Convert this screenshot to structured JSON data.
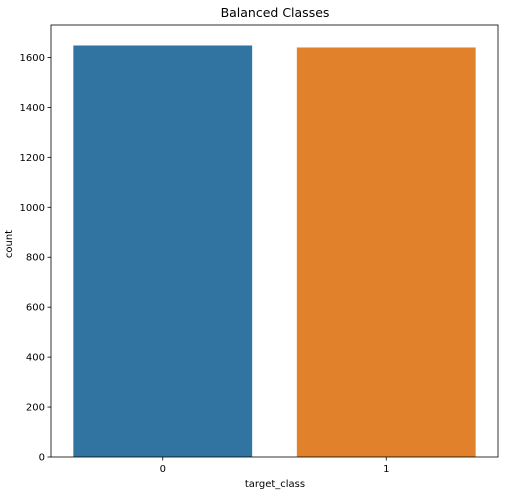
{
  "chart_data": {
    "type": "bar",
    "title": "Balanced Classes",
    "xlabel": "target_class",
    "ylabel": "count",
    "categories": [
      "0",
      "1"
    ],
    "values": [
      1648,
      1640
    ],
    "colors": [
      "#3274a1",
      "#e1812c"
    ],
    "ylim": [
      0,
      1730
    ],
    "yticks": [
      0,
      200,
      400,
      600,
      800,
      1000,
      1200,
      1400,
      1600
    ],
    "grid": false,
    "legend": "none"
  }
}
